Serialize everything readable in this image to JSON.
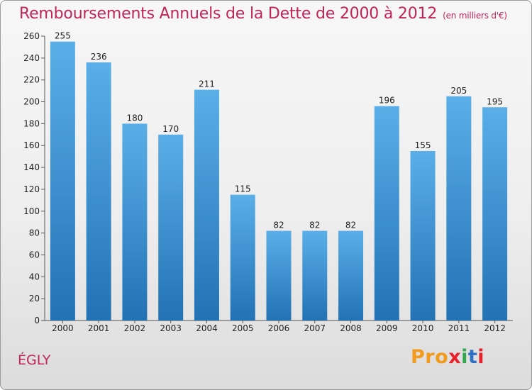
{
  "title": "Remboursements Annuels de la Dette de 2000 à 2012",
  "subtitle": "(en milliers d'€)",
  "city": "ÉGLY",
  "logo": "Proxiti",
  "colors": {
    "title": "#c0255a",
    "bar_top": "#5aafe8",
    "bar_bottom": "#2272b4",
    "logo_letters": [
      "#f29a1c",
      "#f29a1c",
      "#f29a1c",
      "#e8202a",
      "#2fa84f",
      "#3070c4",
      "#e8202a"
    ]
  },
  "chart_data": {
    "type": "bar",
    "categories": [
      "2000",
      "2001",
      "2002",
      "2003",
      "2004",
      "2005",
      "2006",
      "2007",
      "2008",
      "2009",
      "2010",
      "2011",
      "2012"
    ],
    "values": [
      255,
      236,
      180,
      170,
      211,
      115,
      82,
      82,
      82,
      196,
      155,
      205,
      195
    ],
    "ylim": [
      0,
      260
    ],
    "yticks": [
      0,
      20,
      40,
      60,
      80,
      100,
      120,
      140,
      160,
      180,
      200,
      220,
      240,
      260
    ],
    "grid": false,
    "xlabel": "",
    "ylabel": ""
  }
}
